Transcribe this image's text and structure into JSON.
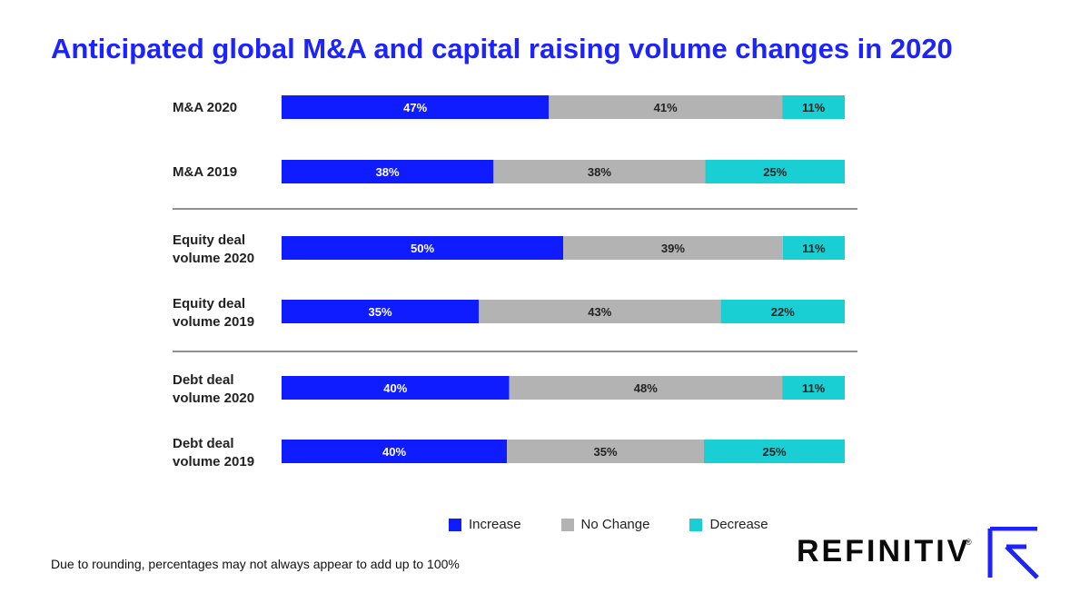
{
  "title": "Anticipated global M&A and capital raising volume changes in 2020",
  "colors": {
    "increase": "#0f1cff",
    "no_change": "#b3b3b3",
    "decrease": "#19cfd3",
    "title": "#1c23ff"
  },
  "chart_data": {
    "type": "bar",
    "orientation": "horizontal",
    "stacked": true,
    "categories": [
      [
        "M&A 2020"
      ],
      [
        "M&A 2019"
      ],
      [
        "Equity deal",
        "volume 2020"
      ],
      [
        "Equity deal",
        "volume 2019"
      ],
      [
        "Debt deal",
        "volume 2020"
      ],
      [
        "Debt deal",
        "volume 2019"
      ]
    ],
    "series": [
      {
        "name": "Increase",
        "key": "increase",
        "values": [
          47,
          38,
          50,
          35,
          40,
          40
        ]
      },
      {
        "name": "No Change",
        "key": "no_change",
        "values": [
          41,
          38,
          39,
          43,
          48,
          35
        ]
      },
      {
        "name": "Decrease",
        "key": "decrease",
        "values": [
          11,
          25,
          11,
          22,
          11,
          25
        ]
      }
    ],
    "value_suffix": "%",
    "group_separators_after": [
      1,
      3
    ]
  },
  "legend": {
    "items": [
      {
        "label": "Increase",
        "key": "increase"
      },
      {
        "label": "No Change",
        "key": "no_change"
      },
      {
        "label": "Decrease",
        "key": "decrease"
      }
    ]
  },
  "footnote": "Due to rounding, percentages may not always appear to add up to 100%",
  "logo": {
    "text": "REFINITIV",
    "reg": "®"
  }
}
